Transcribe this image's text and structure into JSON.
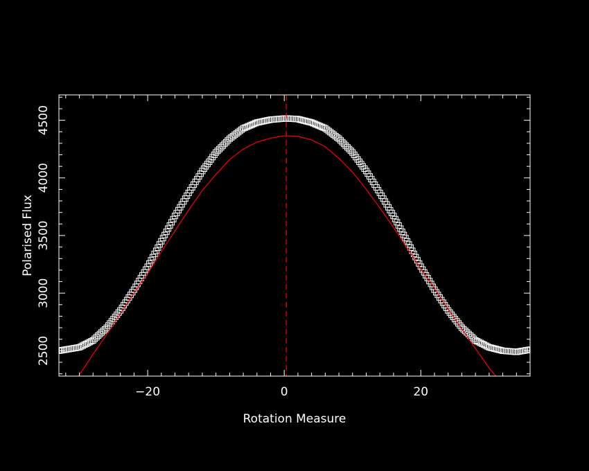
{
  "chart_data": {
    "type": "scatter",
    "xlabel": "Rotation Measure",
    "ylabel": "Polarised Flux",
    "xlim": [
      -33,
      36
    ],
    "ylim": [
      2280,
      4720
    ],
    "x_ticks": [
      {
        "value": -20,
        "label": "−20"
      },
      {
        "value": 0,
        "label": "0"
      },
      {
        "value": 20,
        "label": "20"
      }
    ],
    "x_minor_step": 2,
    "y_ticks": [
      {
        "value": 2500,
        "label": "2500"
      },
      {
        "value": 3000,
        "label": "3000"
      },
      {
        "value": 3500,
        "label": "3500"
      },
      {
        "value": 4000,
        "label": "4000"
      },
      {
        "value": 4500,
        "label": "4500"
      }
    ],
    "y_minor_step": 100,
    "grid": false,
    "colors": {
      "background": "#000000",
      "axes": "#ffffff",
      "data_markers": "#ffffff",
      "fit_curve": "#ff0000",
      "peak_line": "#ff0000"
    },
    "series": [
      {
        "kind": "markers",
        "marker": "square",
        "color": "#ffffff",
        "x_step": 0.25,
        "x": [
          -33,
          -30,
          -28,
          -26,
          -24,
          -22,
          -20,
          -18,
          -16,
          -14,
          -12,
          -10,
          -8,
          -6,
          -4,
          -2,
          0,
          0.5,
          2,
          4,
          6,
          8,
          10,
          12,
          14,
          16,
          18,
          20,
          22,
          24,
          26,
          28,
          30,
          32,
          34,
          36
        ],
        "y": [
          2500,
          2530,
          2590,
          2700,
          2850,
          3030,
          3230,
          3450,
          3670,
          3870,
          4060,
          4220,
          4340,
          4430,
          4480,
          4505,
          4515,
          4515,
          4510,
          4480,
          4430,
          4340,
          4220,
          4060,
          3870,
          3670,
          3450,
          3230,
          3030,
          2850,
          2700,
          2590,
          2530,
          2500,
          2490,
          2510
        ]
      },
      {
        "kind": "line",
        "color": "#ff0000",
        "x": [
          -30,
          -28,
          -26,
          -24,
          -22,
          -20,
          -18,
          -16,
          -14,
          -12,
          -10,
          -8,
          -6,
          -4,
          -2,
          0,
          0.5,
          2,
          4,
          6,
          8,
          10,
          12,
          14,
          16,
          18,
          20,
          22,
          24,
          26,
          28,
          30,
          31
        ],
        "y": [
          2290,
          2470,
          2640,
          2820,
          3000,
          3170,
          3360,
          3540,
          3720,
          3890,
          4030,
          4160,
          4250,
          4310,
          4345,
          4365,
          4365,
          4360,
          4330,
          4270,
          4170,
          4050,
          3900,
          3740,
          3570,
          3390,
          3210,
          3040,
          2860,
          2690,
          2520,
          2350,
          2280
        ]
      }
    ],
    "annotations": [
      {
        "type": "vertical-dashed-line",
        "x": 0.3,
        "color": "#ff0000"
      }
    ]
  }
}
